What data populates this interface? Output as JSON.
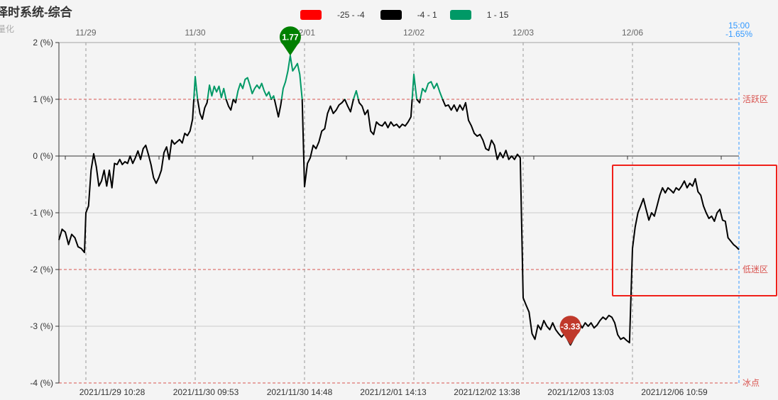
{
  "header": {
    "title": "择时系统-综合",
    "subtitle": "量化"
  },
  "legend": [
    {
      "label": "-25 - -4",
      "color": "#ff0000"
    },
    {
      "label": "-4 - 1",
      "color": "#000000"
    },
    {
      "label": "1 - 15",
      "color": "#009966"
    }
  ],
  "chart_data": {
    "type": "line",
    "title": "择时系统-综合",
    "ylim": [
      -4,
      2
    ],
    "y_ticks": [
      "2 (%)",
      "1 (%)",
      "0 (%)",
      "-1 (%)",
      "-2 (%)",
      "-3 (%)",
      "-4 (%)"
    ],
    "y_tick_values": [
      2,
      1,
      0,
      -1,
      -2,
      -3,
      -4
    ],
    "top_day_labels": [
      "11/29",
      "11/30",
      "12/01",
      "12/02",
      "12/03",
      "12/06"
    ],
    "bottom_time_labels": [
      "2021/11/29 10:28",
      "2021/11/30 09:53",
      "2021/11/30 14:48",
      "2021/12/01 14:13",
      "2021/12/02 13:38",
      "2021/12/03 13:03",
      "2021/12/06 10:59"
    ],
    "reference_lines": [
      {
        "value": 1,
        "label": "活跃区",
        "color": "#d9534f"
      },
      {
        "value": -2,
        "label": "低迷区",
        "color": "#d9534f"
      },
      {
        "value": -4,
        "label": "冰点",
        "color": "#d9534f"
      }
    ],
    "color_bands": [
      {
        "range": [
          -25,
          -4
        ],
        "color": "#ff0000"
      },
      {
        "range": [
          -4,
          1
        ],
        "color": "#000000"
      },
      {
        "range": [
          1,
          15
        ],
        "color": "#009966"
      }
    ],
    "last_point": {
      "time": "15:00",
      "value_label": "-1.65%",
      "color": "#3399ff"
    },
    "max_marker": {
      "label": "1.77",
      "value": 1.77,
      "color": "#008000"
    },
    "min_marker": {
      "label": "-3.33",
      "value": -3.33,
      "color": "#c0392b"
    },
    "pre_segment": [
      -1.48,
      -1.29,
      -1.34,
      -1.56,
      -1.38,
      -1.44,
      -1.6,
      -1.63,
      -1.7
    ],
    "days": [
      {
        "date": "11/29",
        "values": [
          -1.0,
          -0.88,
          -0.25,
          0.04,
          -0.19,
          -0.53,
          -0.44,
          -0.25,
          -0.53,
          -0.25,
          -0.56,
          -0.13,
          -0.15,
          -0.06,
          -0.15,
          -0.1,
          -0.13,
          0,
          -0.13,
          -0.03,
          0.09,
          -0.06,
          0.13,
          0.19,
          0.03,
          -0.15,
          -0.38,
          -0.48,
          -0.38,
          -0.25,
          0.06,
          0.16,
          -0.06,
          0.28,
          0.21,
          0.25,
          0.29,
          0.23,
          0.4,
          0.36,
          0.44,
          0.65
        ]
      },
      {
        "date": "11/30",
        "values": [
          1.4,
          1.0,
          0.75,
          0.65,
          0.85,
          0.94,
          1.25,
          1.06,
          1.23,
          1.13,
          1.23,
          1.03,
          1.19,
          1.0,
          0.88,
          0.81,
          1.0,
          0.94,
          1.15,
          1.28,
          1.19,
          1.35,
          1.38,
          1.25,
          1.1,
          1.19,
          1.25,
          1.19,
          1.28,
          1.15,
          1.06,
          1.13,
          1.0,
          1.06,
          0.88,
          0.69,
          0.9,
          1.19,
          1.31,
          1.5,
          1.77,
          1.5,
          1.56,
          1.63,
          1.44,
          1.0
        ]
      },
      {
        "date": "12/01",
        "values": [
          -0.54,
          -0.13,
          -0.03,
          0.19,
          0.13,
          0.25,
          0.44,
          0.48,
          0.75,
          0.88,
          0.75,
          0.81,
          0.9,
          0.94,
          1.0,
          0.88,
          0.78,
          1.0,
          1.15,
          0.94,
          0.88,
          0.73,
          0.81,
          0.44,
          0.38,
          0.6,
          0.55,
          0.53,
          0.6,
          0.5,
          0.6,
          0.53,
          0.56,
          0.5,
          0.56,
          0.53,
          0.6,
          0.69
        ]
      },
      {
        "date": "12/02",
        "values": [
          1.44,
          1.0,
          0.94,
          1.19,
          1.13,
          1.28,
          1.31,
          1.19,
          1.28,
          1.13,
          1.0,
          0.88,
          0.9,
          0.81,
          0.9,
          0.79,
          0.9,
          0.81,
          0.94,
          0.63,
          0.53,
          0.4,
          0.35,
          0.38,
          0.28,
          0.13,
          0.1,
          0.28,
          0.19,
          -0.06,
          0.06,
          -0.03,
          0.1,
          -0.06,
          0,
          -0.06,
          0.03,
          -0.03
        ]
      },
      {
        "date": "12/03",
        "values": [
          -2.5,
          -2.63,
          -2.75,
          -3.13,
          -3.23,
          -2.98,
          -3.06,
          -2.9,
          -3.0,
          -3.06,
          -2.94,
          -3.06,
          -3.13,
          -3.19,
          -3.13,
          -3.23,
          -3.33,
          -3.23,
          -3.03,
          -2.94,
          -3.03,
          -2.94,
          -3.0,
          -2.94,
          -3.03,
          -2.98,
          -2.9,
          -2.84,
          -2.88,
          -2.81,
          -2.84,
          -2.94,
          -3.15,
          -3.23,
          -3.2,
          -3.25,
          -3.29
        ]
      },
      {
        "date": "12/06",
        "values": [
          -1.63,
          -1.25,
          -1.0,
          -0.88,
          -0.75,
          -0.94,
          -1.13,
          -1.0,
          -1.06,
          -0.88,
          -0.69,
          -0.56,
          -0.65,
          -0.56,
          -0.6,
          -0.65,
          -0.56,
          -0.6,
          -0.53,
          -0.44,
          -0.56,
          -0.48,
          -0.53,
          -0.4,
          -0.63,
          -0.69,
          -0.88,
          -1.0,
          -1.1,
          -1.06,
          -1.15,
          -1.0,
          -0.94,
          -1.13,
          -1.15,
          -1.44,
          -1.5,
          -1.56,
          -1.6,
          -1.65
        ]
      }
    ],
    "highlight_box_color": "#f0201a"
  }
}
